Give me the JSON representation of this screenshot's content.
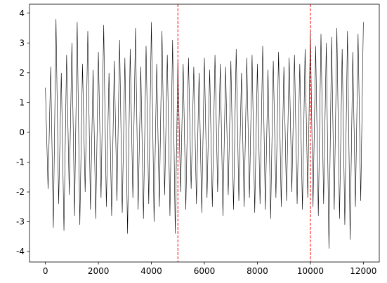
{
  "chart_data": {
    "type": "line",
    "x": [
      0,
      100,
      200,
      300,
      400,
      500,
      600,
      700,
      800,
      900,
      1000,
      1100,
      1200,
      1300,
      1400,
      1500,
      1600,
      1700,
      1800,
      1900,
      2000,
      2100,
      2200,
      2300,
      2400,
      2500,
      2600,
      2700,
      2800,
      2900,
      3000,
      3100,
      3200,
      3300,
      3400,
      3500,
      3600,
      3700,
      3800,
      3900,
      4000,
      4100,
      4200,
      4300,
      4400,
      4500,
      4600,
      4700,
      4800,
      4900,
      5000,
      5100,
      5200,
      5300,
      5400,
      5500,
      5600,
      5700,
      5800,
      5900,
      6000,
      6100,
      6200,
      6300,
      6400,
      6500,
      6600,
      6700,
      6800,
      6900,
      7000,
      7100,
      7200,
      7300,
      7400,
      7500,
      7600,
      7700,
      7800,
      7900,
      8000,
      8100,
      8200,
      8300,
      8400,
      8500,
      8600,
      8700,
      8800,
      8900,
      9000,
      9100,
      9200,
      9300,
      9400,
      9500,
      9600,
      9700,
      9800,
      9900,
      10000,
      10100,
      10200,
      10300,
      10400,
      10500,
      10600,
      10700,
      10800,
      10900,
      11000,
      11100,
      11200,
      11300,
      11400,
      11500,
      11600,
      11700,
      11800,
      11900,
      12000
    ],
    "series": [
      {
        "color": "#000000",
        "values": [
          1.5,
          -1.9,
          2.2,
          -3.2,
          3.8,
          -2.4,
          2.0,
          -3.3,
          2.6,
          -2.1,
          3.0,
          -2.8,
          3.7,
          -3.1,
          2.3,
          -2.0,
          3.4,
          -2.6,
          2.1,
          -2.9,
          2.7,
          -2.2,
          3.6,
          -2.5,
          2.0,
          -2.8,
          2.4,
          -2.3,
          3.1,
          -2.7,
          2.5,
          -3.4,
          2.8,
          -2.2,
          3.5,
          -2.6,
          2.2,
          -2.9,
          2.9,
          -2.4,
          3.7,
          -3.0,
          2.3,
          -2.5,
          3.4,
          -2.1,
          2.6,
          -2.8,
          3.1,
          -3.4,
          2.4,
          -2.0,
          2.3,
          -2.6,
          2.5,
          -1.9,
          2.2,
          -2.4,
          2.0,
          -2.7,
          2.5,
          -2.2,
          2.1,
          -2.5,
          2.6,
          -2.0,
          2.3,
          -2.8,
          2.2,
          -2.1,
          2.4,
          -2.6,
          2.8,
          -2.3,
          2.0,
          -2.5,
          2.5,
          -2.2,
          2.6,
          -2.7,
          2.3,
          -2.4,
          2.9,
          -2.6,
          2.1,
          -2.9,
          2.4,
          -2.2,
          2.7,
          -2.5,
          2.2,
          -2.3,
          2.5,
          -2.0,
          2.6,
          -2.4,
          2.3,
          -2.6,
          2.8,
          -2.2,
          3.4,
          -2.5,
          2.9,
          -2.8,
          3.3,
          -2.4,
          3.0,
          -3.9,
          3.2,
          -2.6,
          3.5,
          -2.9,
          2.8,
          -3.1,
          3.4,
          -3.6,
          2.7,
          -2.5,
          3.3,
          -2.3,
          3.7
        ]
      }
    ],
    "vlines": [
      5000,
      10000
    ],
    "vline_color": "#ff0000",
    "xlim": [
      -600,
      12600
    ],
    "ylim": [
      -4.35,
      4.3
    ],
    "xticks": [
      0,
      2000,
      4000,
      6000,
      8000,
      10000,
      12000
    ],
    "yticks": [
      -4,
      -3,
      -2,
      -1,
      0,
      1,
      2,
      3,
      4
    ]
  }
}
